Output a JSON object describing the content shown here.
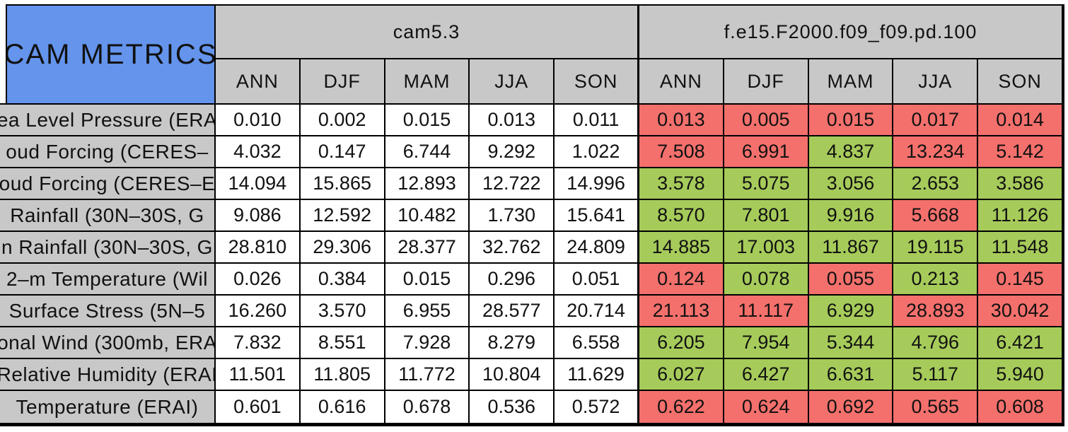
{
  "title": "CAM METRICS",
  "colors": {
    "header_blue": "#6494ec",
    "header_gray": "#c8c8c8",
    "better_green": "#a6cb5a",
    "worse_red": "#f4706c"
  },
  "chart_data": {
    "type": "table",
    "title": "CAM METRICS",
    "column_groups": [
      "cam5.3",
      "f.e15.F2000.f09_f09.pd.100"
    ],
    "seasons": [
      "ANN",
      "DJF",
      "MAM",
      "JJA",
      "SON"
    ],
    "cell_color_legend": {
      "better": "green",
      "worse": "red"
    },
    "rows": [
      {
        "label": "ea Level Pressure (ERA",
        "cam53": [
          "0.010",
          "0.002",
          "0.015",
          "0.013",
          "0.011"
        ],
        "test": [
          "0.013",
          "0.005",
          "0.015",
          "0.017",
          "0.014"
        ],
        "test_status": [
          "worse",
          "worse",
          "worse",
          "worse",
          "worse"
        ]
      },
      {
        "label": "oud Forcing (CERES–",
        "cam53": [
          "4.032",
          "0.147",
          "6.744",
          "9.292",
          "1.022"
        ],
        "test": [
          "7.508",
          "6.991",
          "4.837",
          "13.234",
          "5.142"
        ],
        "test_status": [
          "worse",
          "worse",
          "better",
          "worse",
          "worse"
        ]
      },
      {
        "label": "oud Forcing (CERES–E",
        "cam53": [
          "14.094",
          "15.865",
          "12.893",
          "12.722",
          "14.996"
        ],
        "test": [
          "3.578",
          "5.075",
          "3.056",
          "2.653",
          "3.586"
        ],
        "test_status": [
          "better",
          "better",
          "better",
          "better",
          "better"
        ]
      },
      {
        "label": "Rainfall (30N–30S, G",
        "cam53": [
          "9.086",
          "12.592",
          "10.482",
          "1.730",
          "15.641"
        ],
        "test": [
          "8.570",
          "7.801",
          "9.916",
          "5.668",
          "11.126"
        ],
        "test_status": [
          "better",
          "better",
          "better",
          "worse",
          "better"
        ]
      },
      {
        "label": "n Rainfall (30N–30S, G",
        "cam53": [
          "28.810",
          "29.306",
          "28.377",
          "32.762",
          "24.809"
        ],
        "test": [
          "14.885",
          "17.003",
          "11.867",
          "19.115",
          "11.548"
        ],
        "test_status": [
          "better",
          "better",
          "better",
          "better",
          "better"
        ]
      },
      {
        "label": "2–m Temperature (Wil",
        "cam53": [
          "0.026",
          "0.384",
          "0.015",
          "0.296",
          "0.051"
        ],
        "test": [
          "0.124",
          "0.078",
          "0.055",
          "0.213",
          "0.145"
        ],
        "test_status": [
          "worse",
          "better",
          "worse",
          "better",
          "worse"
        ]
      },
      {
        "label": "Surface Stress (5N–5",
        "cam53": [
          "16.260",
          "3.570",
          "6.955",
          "28.577",
          "20.714"
        ],
        "test": [
          "21.113",
          "11.117",
          "6.929",
          "28.893",
          "30.042"
        ],
        "test_status": [
          "worse",
          "worse",
          "better",
          "worse",
          "worse"
        ]
      },
      {
        "label": "onal Wind (300mb, ERA",
        "cam53": [
          "7.832",
          "8.551",
          "7.928",
          "8.279",
          "6.558"
        ],
        "test": [
          "6.205",
          "7.954",
          "5.344",
          "4.796",
          "6.421"
        ],
        "test_status": [
          "better",
          "better",
          "better",
          "better",
          "better"
        ]
      },
      {
        "label": "Relative Humidity (ERAI",
        "cam53": [
          "11.501",
          "11.805",
          "11.772",
          "10.804",
          "11.629"
        ],
        "test": [
          "6.027",
          "6.427",
          "6.631",
          "5.117",
          "5.940"
        ],
        "test_status": [
          "better",
          "better",
          "better",
          "better",
          "better"
        ]
      },
      {
        "label": "Temperature (ERAI)",
        "cam53": [
          "0.601",
          "0.616",
          "0.678",
          "0.536",
          "0.572"
        ],
        "test": [
          "0.622",
          "0.624",
          "0.692",
          "0.565",
          "0.608"
        ],
        "test_status": [
          "worse",
          "worse",
          "worse",
          "worse",
          "worse"
        ]
      }
    ]
  }
}
